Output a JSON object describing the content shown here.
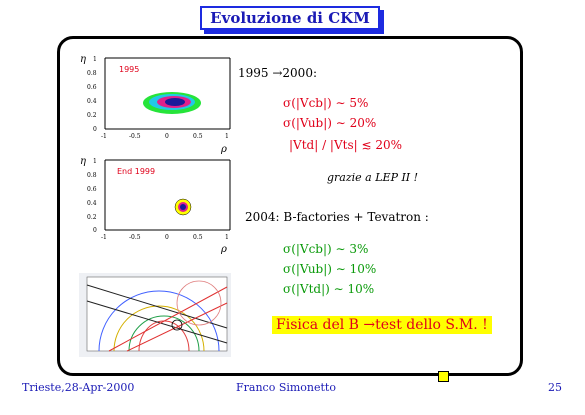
{
  "slide": {
    "title": "Evoluzione di CKM",
    "period1": "1995 →2000:",
    "sigma_vcb_1": "σ(|Vcb|) ∼ 5%",
    "sigma_vub_1": "σ(|Vub|) ∼ 20%",
    "ratio_1": "|Vtd| / |Vts|  ≲ 20%",
    "grazie": "grazie a LEP II !",
    "period2": "2004: B-factories + Tevatron :",
    "sigma_vcb_2": "σ(|Vcb|) ∼ 3%",
    "sigma_vub_2": "σ(|Vub|) ∼ 10%",
    "sigma_vtd_2": "σ(|Vtd|) ∼ 10%",
    "banner": "Fisica del B →test dello S.M. !"
  },
  "plots": {
    "plot1_label": "1995",
    "plot2_label": "End 1999",
    "y_axis": "η",
    "x_axis": "ρ",
    "y_ticks": [
      "1",
      "0.8",
      "0.6",
      "0.4",
      "0.2",
      "0"
    ],
    "x_ticks": [
      "-1",
      "-0.5",
      "0",
      "0.5",
      "1"
    ]
  },
  "footer": {
    "left": "Trieste,28-Apr-2000",
    "center": "Franco Simonetto",
    "right": "25"
  },
  "colors": {
    "title_blue": "#1d2be0",
    "red_text": "#e0001a",
    "green_text": "#0a9a0a",
    "banner_bg": "#ffff00"
  }
}
